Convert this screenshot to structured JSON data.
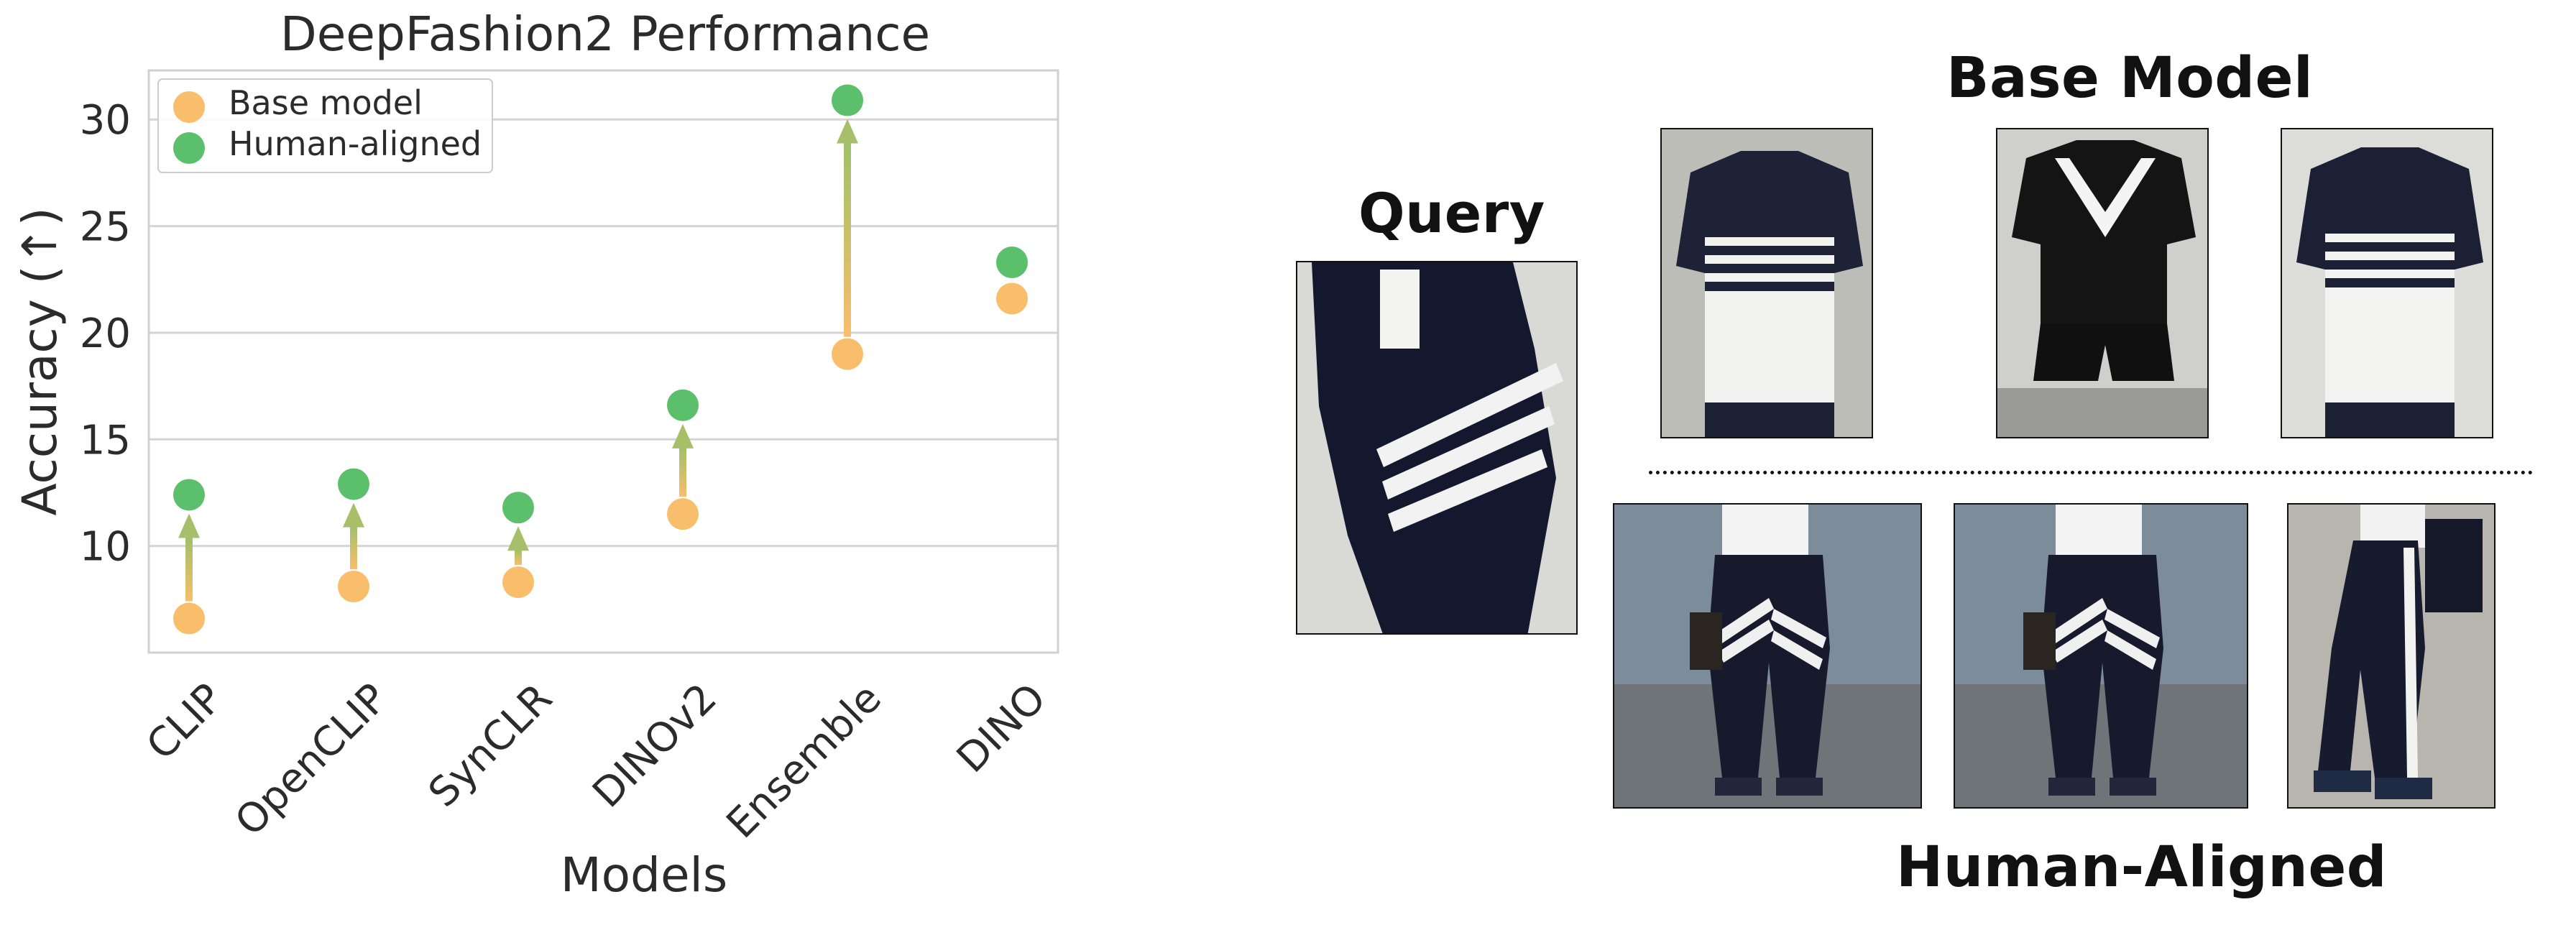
{
  "chart_data": {
    "type": "scatter",
    "title": "DeepFashion2 Performance",
    "xlabel": "Models",
    "ylabel": "Accuracy (↑)",
    "categories": [
      "CLIP",
      "OpenCLIP",
      "SynCLR",
      "DINOv2",
      "Ensemble",
      "DINO"
    ],
    "series": [
      {
        "name": "Base model",
        "values": [
          6.6,
          8.1,
          8.3,
          11.5,
          19.0,
          21.6
        ],
        "color": "#f9be6b"
      },
      {
        "name": "Human-aligned",
        "values": [
          12.4,
          12.9,
          11.8,
          16.6,
          30.9,
          23.3
        ],
        "color": "#5cbf6b"
      }
    ],
    "arrows_on": [
      "CLIP",
      "OpenCLIP",
      "SynCLR",
      "DINOv2",
      "Ensemble"
    ],
    "ylim": [
      5,
      32.3
    ],
    "yticks": [
      10,
      15,
      20,
      25,
      30
    ],
    "grid": true,
    "legend_position": "top-left"
  },
  "figure": {
    "query_title": "Query",
    "base_title": "Base Model",
    "aligned_title": "Human-Aligned"
  }
}
